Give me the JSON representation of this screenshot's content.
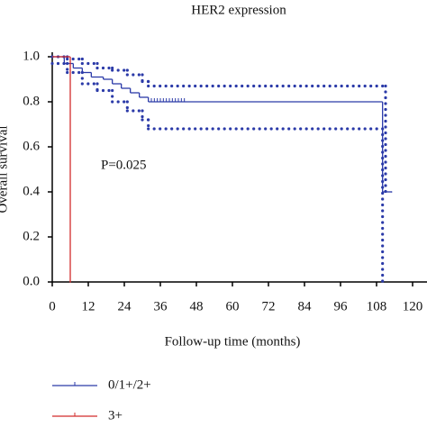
{
  "chart_data": {
    "type": "step",
    "title": "HER2 expression",
    "xlabel": "Follow-up time (months)",
    "ylabel": "Overall survival",
    "annotation": "P=0.025",
    "xlim": [
      0,
      120
    ],
    "xticks": [
      0,
      12,
      24,
      36,
      48,
      60,
      72,
      84,
      96,
      108,
      120
    ],
    "ylim": [
      0,
      1.0
    ],
    "yticks": [
      {
        "value": 0,
        "label": "0.0"
      },
      0.2,
      0.4,
      0.6,
      0.8,
      {
        "value": 1,
        "label": "1.0"
      }
    ],
    "series": [
      {
        "name": "0/1+/2+",
        "color": "#2b3aa8",
        "x": [
          0,
          4,
          7,
          10,
          13,
          17,
          20,
          23,
          26,
          29,
          32,
          110,
          113
        ],
        "values": [
          1.0,
          0.97,
          0.95,
          0.93,
          0.91,
          0.9,
          0.88,
          0.86,
          0.84,
          0.82,
          0.8,
          0.4,
          0.4
        ],
        "censored_x": [
          33,
          34,
          35,
          36,
          37,
          38,
          39,
          40,
          41,
          42,
          43,
          44
        ]
      },
      {
        "name": "3+",
        "color": "#d22b2b",
        "x": [
          0,
          6
        ],
        "values": [
          1.0,
          0.0
        ]
      }
    ],
    "confidence_band": {
      "color": "#2b3aa8",
      "upper_x": [
        0,
        5,
        10,
        15,
        20,
        25,
        30,
        32,
        111
      ],
      "upper": [
        1.0,
        0.99,
        0.97,
        0.95,
        0.94,
        0.92,
        0.89,
        0.87,
        0.4
      ],
      "lower_x": [
        0,
        5,
        10,
        15,
        20,
        25,
        30,
        32,
        110
      ],
      "lower": [
        0.97,
        0.93,
        0.88,
        0.85,
        0.8,
        0.76,
        0.72,
        0.68,
        0.0
      ]
    }
  }
}
